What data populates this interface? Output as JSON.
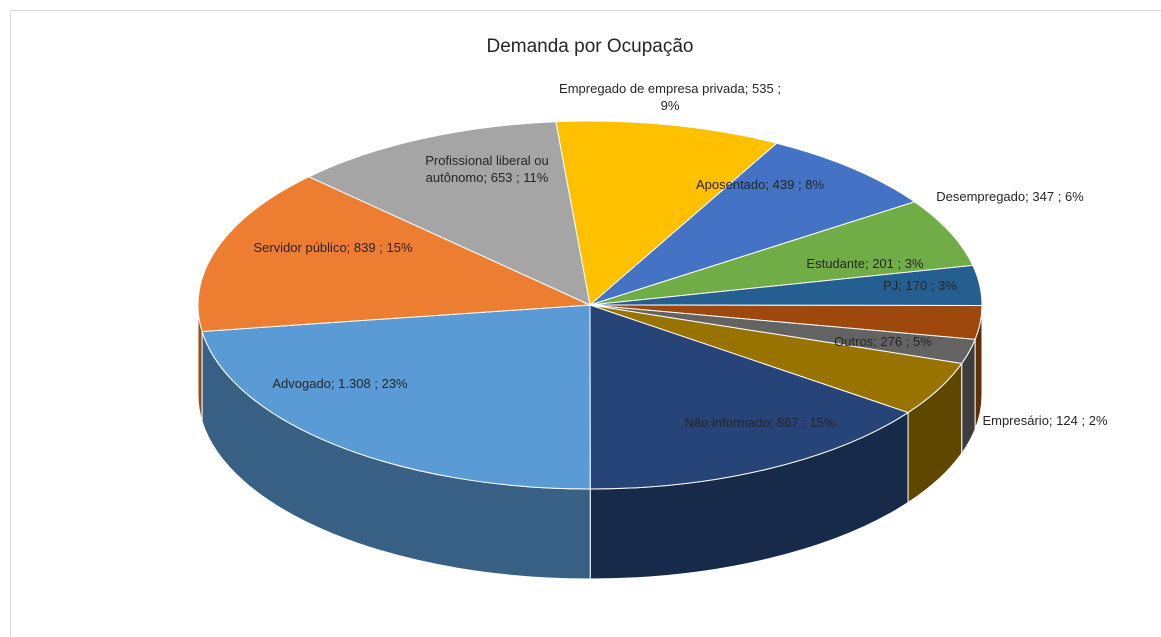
{
  "chart_data": {
    "type": "pie3d",
    "title": "Demanda por Ocupação",
    "separator": ";",
    "categories": [
      "Empregado de empresa privada",
      "Aposentado",
      "Desempregado",
      "Estudante",
      "PJ",
      "Empresário",
      "Outros",
      "Não informado",
      "Advogado",
      "Servidor público",
      "Profissional liberal ou autônomo"
    ],
    "values": [
      535,
      439,
      347,
      201,
      170,
      124,
      276,
      867,
      1308,
      839,
      653
    ],
    "value_labels": [
      "535",
      "439",
      "347",
      "201",
      "170",
      "124",
      "276",
      "867",
      "1.308",
      "839",
      "653"
    ],
    "percents": [
      9,
      8,
      6,
      3,
      3,
      2,
      5,
      15,
      23,
      15,
      11
    ],
    "percent_labels": [
      "9%",
      "8%",
      "6%",
      "3%",
      "3%",
      "2%",
      "5%",
      "15%",
      "23%",
      "15%",
      "11%"
    ],
    "colors": [
      "#ffc000",
      "#4472c4",
      "#70ad47",
      "#255e91",
      "#9e480e",
      "#636363",
      "#997300",
      "#264478",
      "#5b9bd5",
      "#ed7d31",
      "#a5a5a5"
    ]
  }
}
